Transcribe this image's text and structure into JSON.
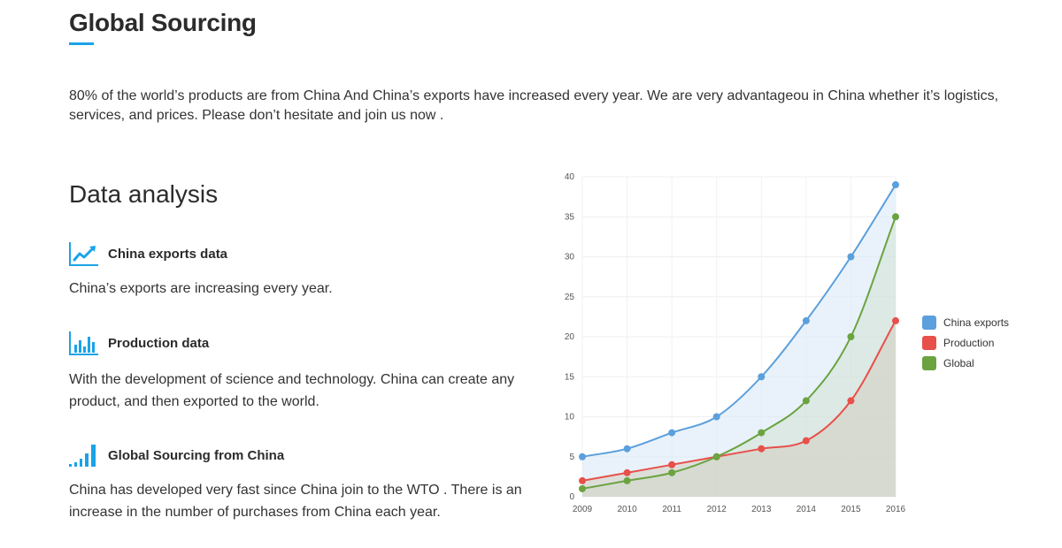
{
  "header": {
    "title": "Global Sourcing",
    "accent_color": "#1aa3e8"
  },
  "intro": {
    "text": "80% of the world’s products are from China And China’s exports have increased every year. We are very advantageou in  China whether it’s logistics, services, and prices. Please don’t hesitate and join us now ."
  },
  "analysis": {
    "title": "Data analysis",
    "features": [
      {
        "icon": "trending-up-icon",
        "title": "China exports data",
        "description": "China’s exports are increasing every year."
      },
      {
        "icon": "bar-chart-icon",
        "title": "Production data",
        "description": "With the development of science and technology. China can create any product, and then exported to the world."
      },
      {
        "icon": "signal-bars-icon",
        "title": "Global Sourcing from China",
        "description": "China has developed very fast since China join to the WTO . There is an increase in the number of purchases from China each year."
      }
    ]
  },
  "chart_data": {
    "type": "area",
    "title": "",
    "xlabel": "",
    "ylabel": "",
    "categories": [
      "2009",
      "2010",
      "2011",
      "2012",
      "2013",
      "2014",
      "2015",
      "2016"
    ],
    "ylim": [
      0,
      40
    ],
    "yticks": [
      0,
      5,
      10,
      15,
      20,
      25,
      30,
      35,
      40
    ],
    "grid": true,
    "legend_position": "right",
    "series": [
      {
        "name": "China exports",
        "color": "#5b9fdc",
        "values": [
          5,
          6,
          8,
          10,
          15,
          22,
          30,
          39
        ]
      },
      {
        "name": "Production",
        "color": "#e8504a",
        "values": [
          2,
          3,
          4,
          5,
          6,
          7,
          12,
          22
        ]
      },
      {
        "name": "Global",
        "color": "#6aa340",
        "values": [
          1,
          2,
          3,
          5,
          8,
          12,
          20,
          35
        ]
      }
    ]
  }
}
